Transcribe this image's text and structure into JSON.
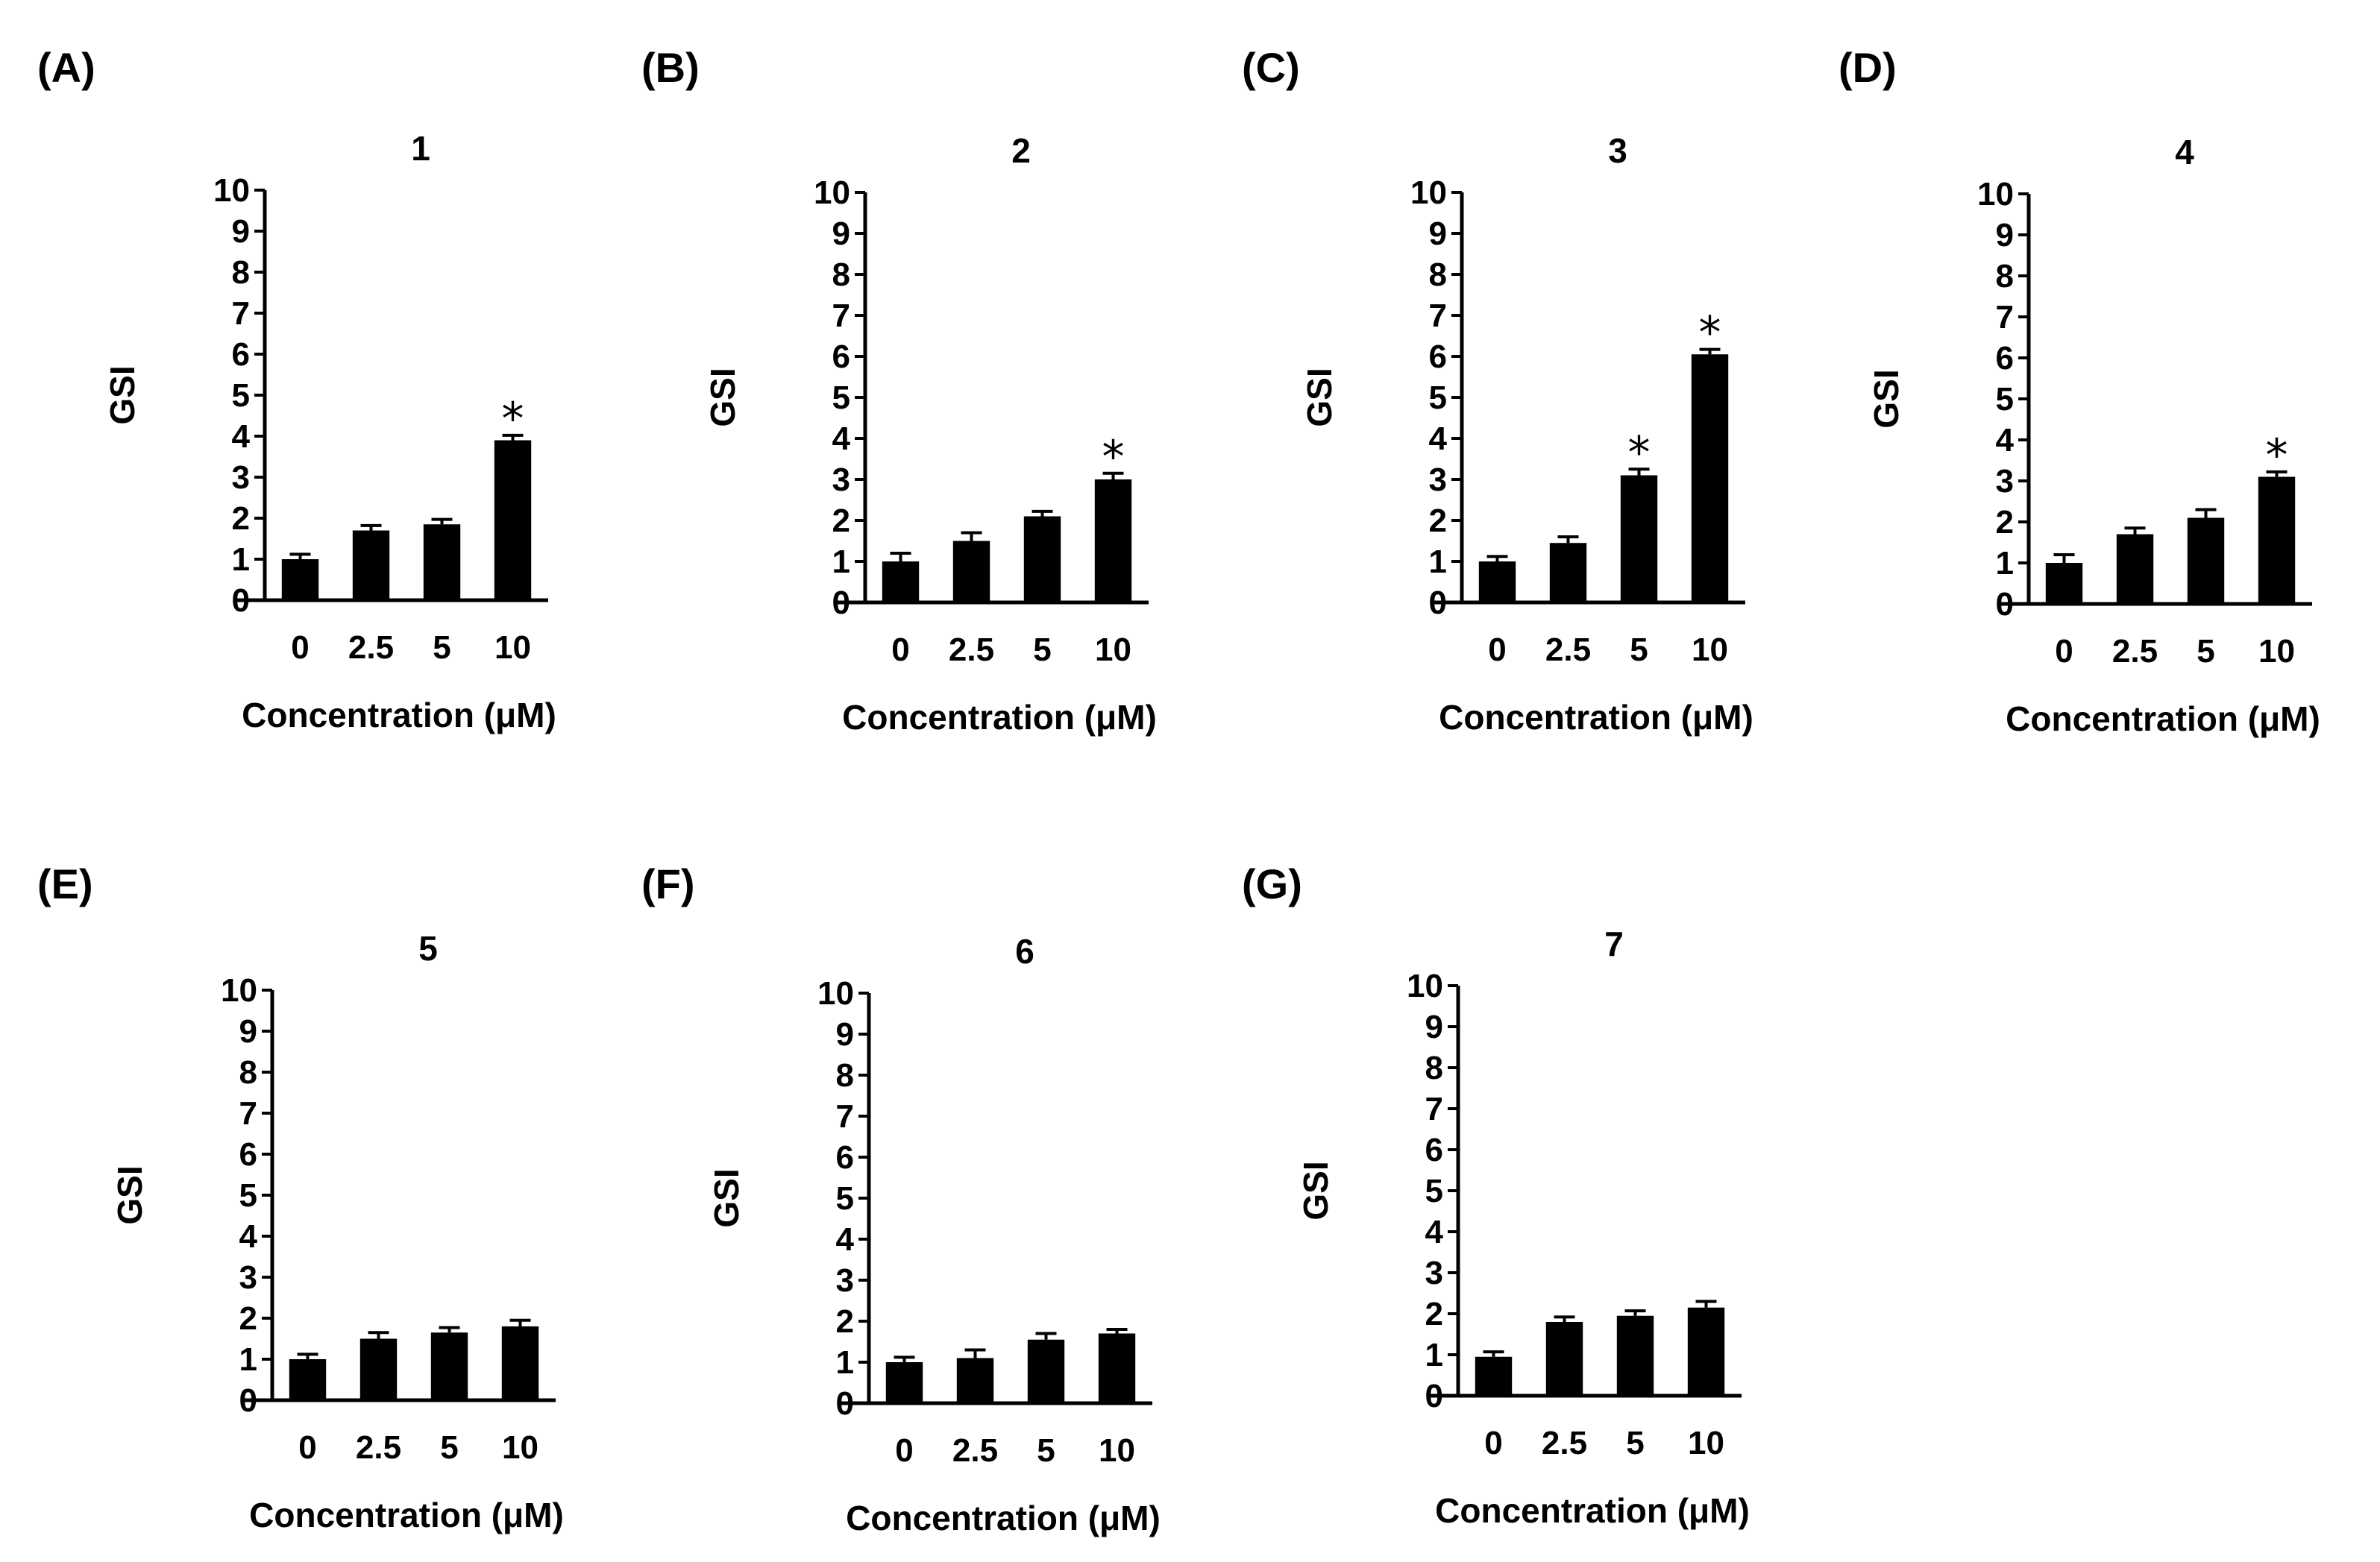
{
  "chart_data": [
    {
      "type": "bar",
      "panel": "(A)",
      "title": "1",
      "categories": [
        "0",
        "2.5",
        "5",
        "10"
      ],
      "values": [
        1.0,
        1.7,
        1.85,
        3.9
      ],
      "errors": [
        0.12,
        0.12,
        0.12,
        0.12
      ],
      "significant": [
        false,
        false,
        false,
        true
      ],
      "marker": "*",
      "xlabel": "Concentration (μM)",
      "ylabel": "GSI",
      "ylim": [
        0,
        10
      ],
      "yticks": [
        "0",
        "1",
        "2",
        "3",
        "4",
        "5",
        "6",
        "7",
        "8",
        "9",
        "10"
      ],
      "grid": false
    },
    {
      "type": "bar",
      "panel": "(B)",
      "title": "2",
      "categories": [
        "0",
        "2.5",
        "5",
        "10"
      ],
      "values": [
        1.0,
        1.5,
        2.1,
        3.0
      ],
      "errors": [
        0.2,
        0.2,
        0.12,
        0.15
      ],
      "significant": [
        false,
        false,
        false,
        true
      ],
      "marker": "*",
      "xlabel": "Concentration (μM)",
      "ylabel": "GSI",
      "ylim": [
        0,
        10
      ],
      "yticks": [
        "0",
        "1",
        "2",
        "3",
        "4",
        "5",
        "6",
        "7",
        "8",
        "9",
        "10"
      ],
      "grid": false
    },
    {
      "type": "bar",
      "panel": "(C)",
      "title": "3",
      "categories": [
        "0",
        "2.5",
        "5",
        "10"
      ],
      "values": [
        1.0,
        1.45,
        3.1,
        6.05
      ],
      "errors": [
        0.12,
        0.15,
        0.15,
        0.12
      ],
      "significant": [
        false,
        false,
        true,
        true
      ],
      "marker": "*",
      "xlabel": "Concentration (μM)",
      "ylabel": "GSI",
      "ylim": [
        0,
        10
      ],
      "yticks": [
        "0",
        "1",
        "2",
        "3",
        "4",
        "5",
        "6",
        "7",
        "8",
        "9",
        "10"
      ],
      "grid": false
    },
    {
      "type": "bar",
      "panel": "(D)",
      "title": "4",
      "categories": [
        "0",
        "2.5",
        "5",
        "10"
      ],
      "values": [
        1.0,
        1.7,
        2.1,
        3.1
      ],
      "errors": [
        0.2,
        0.15,
        0.2,
        0.12
      ],
      "significant": [
        false,
        false,
        false,
        true
      ],
      "marker": "*",
      "xlabel": "Concentration (μM)",
      "ylabel": "GSI",
      "ylim": [
        0,
        10
      ],
      "yticks": [
        "0",
        "1",
        "2",
        "3",
        "4",
        "5",
        "6",
        "7",
        "8",
        "9",
        "10"
      ],
      "grid": false
    },
    {
      "type": "bar",
      "panel": "(E)",
      "title": "5",
      "categories": [
        "0",
        "2.5",
        "5",
        "10"
      ],
      "values": [
        1.0,
        1.5,
        1.65,
        1.8
      ],
      "errors": [
        0.12,
        0.15,
        0.12,
        0.15
      ],
      "significant": [
        false,
        false,
        false,
        false
      ],
      "marker": "*",
      "xlabel": "Concentration (μM)",
      "ylabel": "GSI",
      "ylim": [
        0,
        10
      ],
      "yticks": [
        "0",
        "1",
        "2",
        "3",
        "4",
        "5",
        "6",
        "7",
        "8",
        "9",
        "10"
      ],
      "grid": false
    },
    {
      "type": "bar",
      "panel": "(F)",
      "title": "6",
      "categories": [
        "0",
        "2.5",
        "5",
        "10"
      ],
      "values": [
        1.0,
        1.1,
        1.55,
        1.7
      ],
      "errors": [
        0.12,
        0.2,
        0.15,
        0.1
      ],
      "significant": [
        false,
        false,
        false,
        false
      ],
      "marker": "*",
      "xlabel": "Concentration (μM)",
      "ylabel": "GSI",
      "ylim": [
        0,
        10
      ],
      "yticks": [
        "0",
        "1",
        "2",
        "3",
        "4",
        "5",
        "6",
        "7",
        "8",
        "9",
        "10"
      ],
      "grid": false
    },
    {
      "type": "bar",
      "panel": "(G)",
      "title": "7",
      "categories": [
        "0",
        "2.5",
        "5",
        "10"
      ],
      "values": [
        0.95,
        1.8,
        1.95,
        2.15
      ],
      "errors": [
        0.12,
        0.12,
        0.12,
        0.15
      ],
      "significant": [
        false,
        false,
        false,
        false
      ],
      "marker": "*",
      "xlabel": "Concentration (μM)",
      "ylabel": "GSI",
      "ylim": [
        0,
        10
      ],
      "yticks": [
        "0",
        "1",
        "2",
        "3",
        "4",
        "5",
        "6",
        "7",
        "8",
        "9",
        "10"
      ],
      "grid": false
    }
  ]
}
